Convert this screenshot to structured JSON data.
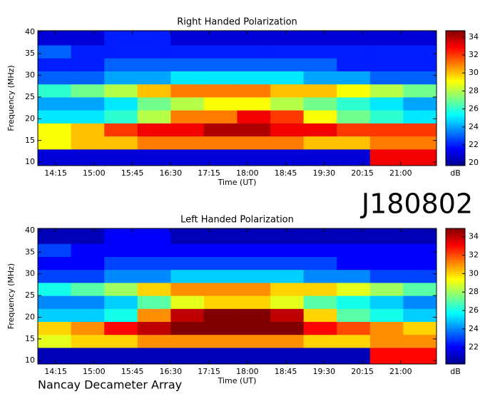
{
  "chart_data": [
    {
      "type": "heatmap",
      "title": "Right Handed Polarization",
      "xlabel": "Time (UT)",
      "ylabel": "Frequency (MHz)",
      "colorbar_label": "dB",
      "x_bins": [
        13.9,
        14.55,
        15.2,
        15.85,
        16.5,
        17.15,
        17.8,
        18.45,
        19.1,
        19.75,
        20.4,
        21.05,
        21.7
      ],
      "y_bins": [
        9.2,
        13,
        16,
        19,
        22,
        25,
        28,
        31,
        34,
        37,
        40.3
      ],
      "z": [
        [
          21,
          21,
          21,
          21,
          21,
          21,
          21,
          21,
          21,
          21,
          33,
          33
        ],
        [
          29,
          30,
          30,
          31,
          31,
          31,
          31,
          31,
          30,
          30,
          31,
          31
        ],
        [
          29,
          30,
          32,
          33,
          33,
          34,
          34,
          33,
          33,
          32,
          32,
          32
        ],
        [
          25,
          25,
          26,
          28,
          31,
          31,
          33,
          32,
          29,
          27,
          26,
          25
        ],
        [
          24,
          24,
          25,
          27,
          28,
          29,
          29,
          28,
          27,
          26,
          25,
          24
        ],
        [
          26,
          27,
          28,
          30,
          31,
          31,
          31,
          30,
          30,
          29,
          28,
          27
        ],
        [
          23,
          23,
          24,
          24,
          25,
          25,
          25,
          25,
          24,
          24,
          23,
          23
        ],
        [
          22,
          22,
          23,
          23,
          23,
          23,
          23,
          23,
          23,
          22,
          22,
          22
        ],
        [
          23,
          22,
          22,
          22,
          22,
          22,
          22,
          22,
          22,
          22,
          22,
          22
        ],
        [
          21,
          21,
          22,
          22,
          21,
          21,
          21,
          21,
          21,
          21,
          21,
          21
        ]
      ],
      "xlim": [
        13.9,
        21.7
      ],
      "ylim": [
        9.2,
        40.3
      ],
      "zlim": [
        19.7,
        34.7
      ],
      "xticks": [
        {
          "value": 14.25,
          "label": "14:15"
        },
        {
          "value": 15,
          "label": "15:00"
        },
        {
          "value": 15.75,
          "label": "15:45"
        },
        {
          "value": 16.5,
          "label": "16:30"
        },
        {
          "value": 17.25,
          "label": "17:15"
        },
        {
          "value": 18,
          "label": "18:00"
        },
        {
          "value": 18.75,
          "label": "18:45"
        },
        {
          "value": 19.5,
          "label": "19:30"
        },
        {
          "value": 20.25,
          "label": "20:15"
        },
        {
          "value": 21,
          "label": "21:00"
        }
      ],
      "yticks": [
        10,
        15,
        20,
        25,
        30,
        35,
        40
      ],
      "zticks": [
        20,
        22,
        24,
        26,
        28,
        30,
        32,
        34
      ]
    },
    {
      "type": "heatmap",
      "title": "Left Handed Polarization",
      "xlabel": "Time (UT)",
      "ylabel": "Frequency (MHz)",
      "colorbar_label": "dB",
      "x_bins": [
        13.9,
        14.55,
        15.2,
        15.85,
        16.5,
        17.15,
        17.8,
        18.45,
        19.1,
        19.75,
        20.4,
        21.05,
        21.7
      ],
      "y_bins": [
        9.2,
        13,
        16,
        19,
        22,
        25,
        28,
        31,
        34,
        37,
        40.5
      ],
      "z": [
        [
          21,
          21,
          21,
          21,
          21,
          21,
          21,
          21,
          21,
          21,
          33,
          33
        ],
        [
          29,
          30,
          30,
          31,
          31,
          31,
          31,
          31,
          30,
          30,
          31,
          31
        ],
        [
          30,
          31,
          33,
          34,
          35,
          35,
          35,
          35,
          33,
          32,
          31,
          30
        ],
        [
          25,
          25,
          26,
          31,
          34,
          35,
          35,
          34,
          30,
          27,
          26,
          25
        ],
        [
          24,
          24,
          25,
          27,
          29,
          30,
          30,
          29,
          27,
          26,
          25,
          24
        ],
        [
          26,
          27,
          28,
          30,
          31,
          31,
          31,
          30,
          30,
          29,
          28,
          27
        ],
        [
          23,
          23,
          24,
          24,
          25,
          25,
          25,
          25,
          24,
          24,
          23,
          23
        ],
        [
          22,
          22,
          23,
          23,
          23,
          23,
          23,
          23,
          23,
          22,
          22,
          22
        ],
        [
          23,
          22,
          22,
          22,
          22,
          22,
          22,
          22,
          22,
          22,
          22,
          22
        ],
        [
          21,
          21,
          22,
          22,
          21,
          21,
          21,
          21,
          21,
          21,
          21,
          21
        ]
      ],
      "xlim": [
        13.9,
        21.7
      ],
      "ylim": [
        9.2,
        40.5
      ],
      "zlim": [
        20.2,
        34.9
      ],
      "xticks": [
        {
          "value": 14.25,
          "label": "14:15"
        },
        {
          "value": 15,
          "label": "15:00"
        },
        {
          "value": 15.75,
          "label": "15:45"
        },
        {
          "value": 16.5,
          "label": "16:30"
        },
        {
          "value": 17.25,
          "label": "17:15"
        },
        {
          "value": 18,
          "label": "18:00"
        },
        {
          "value": 18.75,
          "label": "18:45"
        },
        {
          "value": 19.5,
          "label": "19:30"
        },
        {
          "value": 20.25,
          "label": "20:15"
        },
        {
          "value": 21,
          "label": "21:00"
        }
      ],
      "yticks": [
        10,
        15,
        20,
        25,
        30,
        35,
        40
      ],
      "zticks": [
        22,
        24,
        26,
        28,
        30,
        32,
        34
      ]
    }
  ],
  "annotations": {
    "id": "J180802",
    "footer": "Nancay Decameter Array"
  }
}
